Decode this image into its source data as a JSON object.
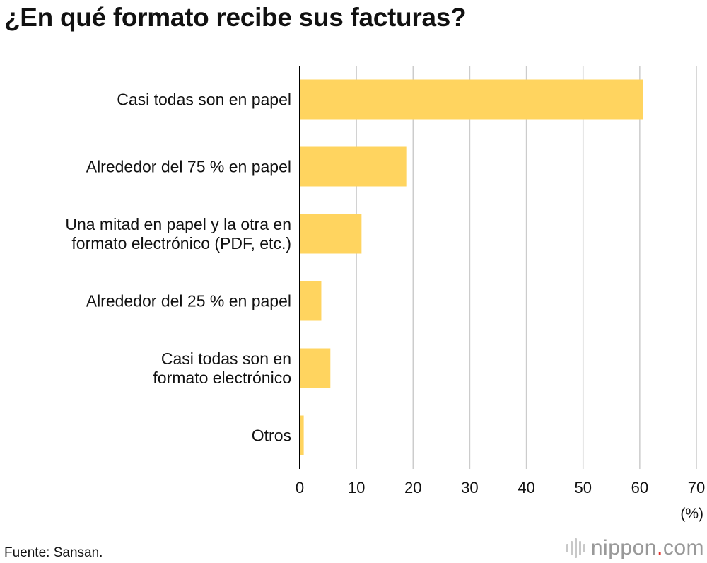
{
  "title": "¿En qué formato recibe sus facturas?",
  "source": "Fuente: Sansan.",
  "logo": {
    "name": "nippon",
    "dot": ".",
    "tld": "com"
  },
  "colors": {
    "bar": "#FFD45F",
    "grid": "#CCCCCC",
    "axis": "#000000",
    "logo_accent": "#E3312B"
  },
  "chart_data": {
    "type": "bar",
    "orientation": "horizontal",
    "categories": [
      [
        "Casi todas son en papel"
      ],
      [
        "Alrededor del 75 % en papel"
      ],
      [
        "Una mitad en papel y la otra en",
        "formato electrónico (PDF, etc.)"
      ],
      [
        "Alrededor del 25 % en papel"
      ],
      [
        "Casi todas son en",
        "formato electrónico"
      ],
      [
        "Otros"
      ]
    ],
    "values": [
      60.6,
      18.8,
      10.9,
      3.8,
      5.4,
      0.7
    ],
    "xlim": [
      0,
      70
    ],
    "xticks": [
      0,
      10,
      20,
      30,
      40,
      50,
      60,
      70
    ],
    "xlabel": "(%)",
    "grid": true
  }
}
